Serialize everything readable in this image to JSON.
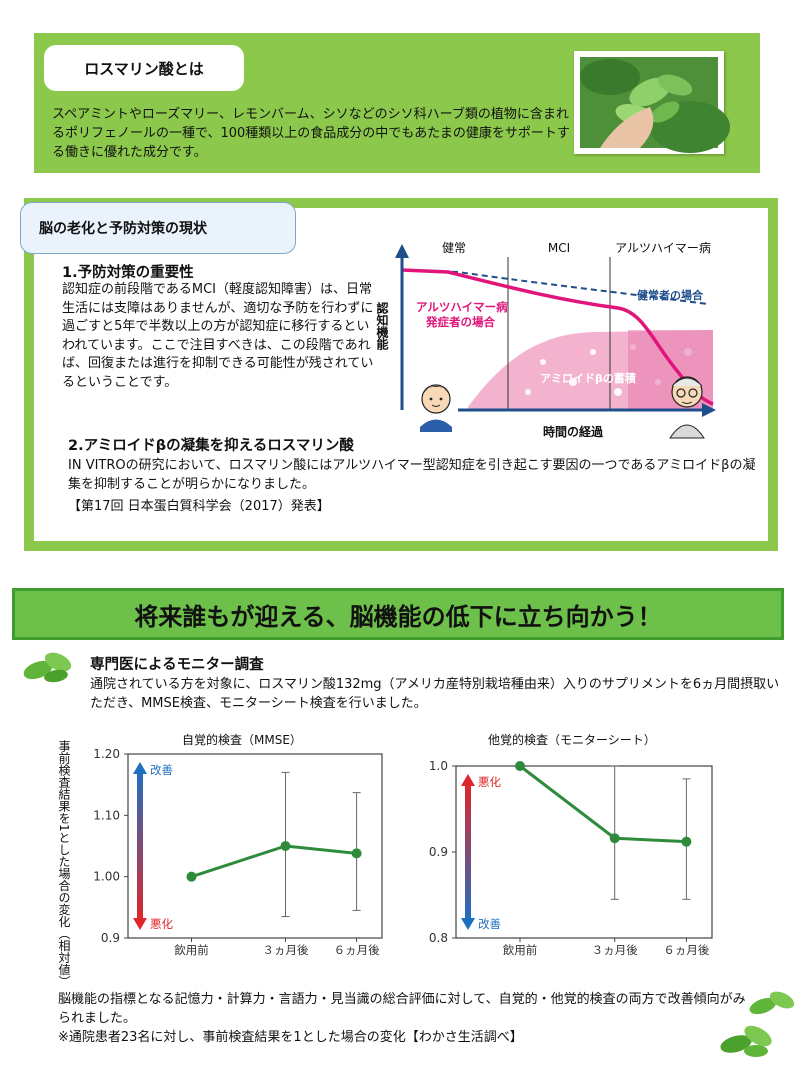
{
  "section1": {
    "title": "ロスマリン酸とは",
    "body": "スペアミントやローズマリー、レモンバーム、シソなどのシソ科ハーブ類の植物に含まれるポリフェノールの一種で、100種類以上の食品成分の中でもあたまの健康をサポートする働きに優れた成分です。"
  },
  "section2": {
    "title": "脳の老化と予防対策の現状",
    "p1_heading": "1.予防対策の重要性",
    "p1_body": "認知症の前段階であるMCI（軽度認知障害）は、日常生活には支障はありませんが、適切な予防を行わずに過ごすと5年で半数以上の方が認知症に移行するといわれています。ここで注目すべきは、この段階であれば、回復または進行を抑制できる可能性が残されているということです。",
    "p2_heading": "2.アミロイドβの凝集を抑えるロスマリン酸",
    "p2_body": "IN VITROの研究において、ロスマリン酸にはアルツハイマー型認知症を引き起こす要因の一つであるアミロイドβの凝集を抑制することが明らかになりました。",
    "p2_ref": "【第17回 日本蛋白質科学会（2017）発表】",
    "diagram": {
      "stage1": "健常",
      "stage2": "MCI",
      "stage3": "アルツハイマー病",
      "healthy_label": "健常者の場合",
      "patient_label_1": "アルツハイマー病",
      "patient_label_2": "発症者の場合",
      "amyloid_label": "アミロイドβの蓄積",
      "ylabel": "認知機能",
      "xlabel": "時間の経過"
    }
  },
  "banner": {
    "text": "将来誰もが迎える、脳機能の低下に立ち向かう！"
  },
  "monitor": {
    "heading": "専門医によるモニター調査",
    "body": "通院されている方を対象に、ロスマリン酸132mg（アメリカ産特別栽培種由来）入りのサプリメントを6ヵ月間摂取いただき、MMSE検査、モニターシート検査を行いました。"
  },
  "chart_data": [
    {
      "type": "line",
      "title": "自覚的検査（MMSE）",
      "ylabel": "事前検査結果を1とした場合の変化（相対値）",
      "categories": [
        "飲用前",
        "３ヵ月後",
        "６ヵ月後"
      ],
      "values": [
        1.0,
        1.05,
        1.038
      ],
      "error_bars": [
        [
          1.0,
          1.0
        ],
        [
          0.935,
          1.17
        ],
        [
          0.945,
          1.137
        ]
      ],
      "ylim": [
        0.9,
        1.2
      ],
      "yticks": [
        "0.9",
        "1.00",
        "1.10",
        "1.20"
      ],
      "arrow_top": "改善",
      "arrow_bottom": "悪化",
      "grid": false,
      "color": "#2e8b3c"
    },
    {
      "type": "line",
      "title": "他覚的検査（モニターシート）",
      "categories": [
        "飲用前",
        "３ヵ月後",
        "６ヵ月後"
      ],
      "values": [
        1.0,
        0.916,
        0.912
      ],
      "error_bars": [
        [
          1.0,
          1.0
        ],
        [
          0.845,
          1.0
        ],
        [
          0.845,
          0.985
        ]
      ],
      "ylim": [
        0.8,
        1.0
      ],
      "yticks": [
        "0.8",
        "0.9",
        "1.0"
      ],
      "arrow_top": "悪化",
      "arrow_bottom": "改善",
      "grid": false,
      "color": "#2e8b3c"
    }
  ],
  "footer": {
    "line1": "脳機能の指標となる記憶力・計算力・言語力・見当識の総合評価に対して、自覚的・他覚的検査の両方で改善傾向がみられました。",
    "line2": "※通院患者23名に対し、事前検査結果を1とした場合の変化【わかさ生活調べ】"
  },
  "colors": {
    "green": "#8cc84b",
    "banner": "#6dc04a",
    "line": "#2e8b3c",
    "pink": "#e0147a"
  },
  "icons": {
    "leaf": "mint-leaf-icon",
    "photo": "mint-photo",
    "person_young": "person-icon",
    "person_old": "elderly-person-icon"
  }
}
